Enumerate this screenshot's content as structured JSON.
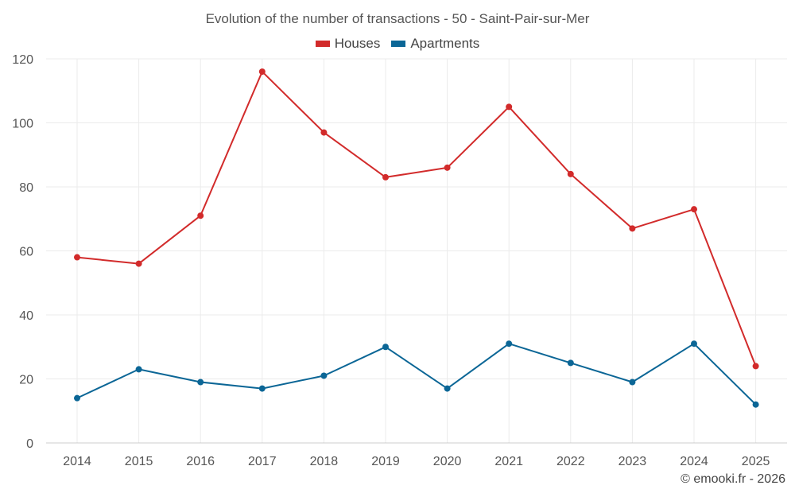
{
  "chart_data": {
    "type": "line",
    "title": "Evolution of the number of transactions - 50 - Saint-Pair-sur-Mer",
    "categories": [
      "2014",
      "2015",
      "2016",
      "2017",
      "2018",
      "2019",
      "2020",
      "2021",
      "2022",
      "2023",
      "2024",
      "2025"
    ],
    "series": [
      {
        "name": "Houses",
        "color": "#d22b2b",
        "values": [
          58,
          56,
          71,
          116,
          97,
          83,
          86,
          105,
          84,
          67,
          73,
          24
        ]
      },
      {
        "name": "Apartments",
        "color": "#0b6696",
        "values": [
          14,
          23,
          19,
          17,
          21,
          30,
          17,
          31,
          25,
          19,
          31,
          12
        ]
      }
    ],
    "ylim": [
      0,
      120
    ],
    "yticks": [
      "0",
      "20",
      "40",
      "60",
      "80",
      "100",
      "120"
    ],
    "grid": true,
    "legend_position": "top-center"
  },
  "credit": "© emooki.fr - 2026"
}
